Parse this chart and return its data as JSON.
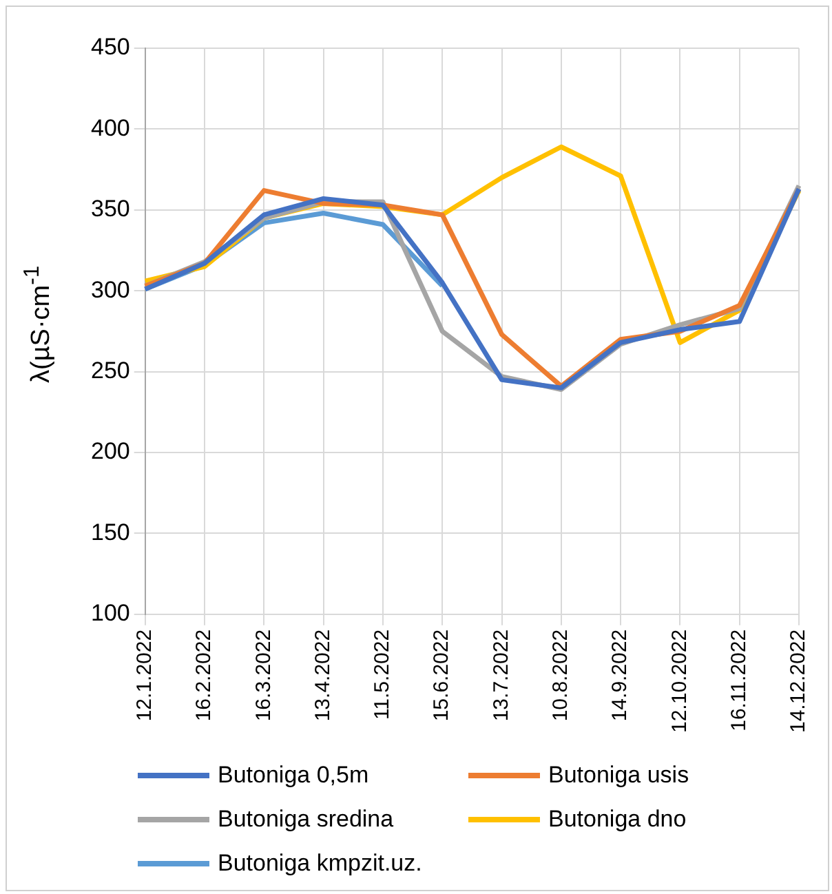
{
  "chart_data": {
    "type": "line",
    "ylabel": "λ(µS·cm$^{-1}$",
    "categories": [
      "12.1.2022",
      "16.2.2022",
      "16.3.2022",
      "13.4.2022",
      "11.5.2022",
      "15.6.2022",
      "13.7.2022",
      "10.8.2022",
      "14.9.2022",
      "12.10.2022",
      "16.11.2022",
      "14.12.2022"
    ],
    "series": [
      {
        "name": "Butoniga 0,5m",
        "color": "#4472c4",
        "values": [
          301,
          317,
          347,
          357,
          353,
          305,
          245,
          240,
          268,
          276,
          281,
          363
        ]
      },
      {
        "name": "Butoniga usis",
        "color": "#ed7d31",
        "values": [
          303,
          317,
          362,
          354,
          353,
          347,
          273,
          241,
          270,
          275,
          291,
          363
        ]
      },
      {
        "name": "Butoniga sredina",
        "color": "#a5a5a5",
        "values": [
          303,
          318,
          345,
          355,
          355,
          275,
          247,
          239,
          267,
          279,
          289,
          365
        ]
      },
      {
        "name": "Butoniga dno",
        "color": "#ffc000",
        "values": [
          306,
          315,
          345,
          354,
          352,
          347,
          370,
          389,
          371,
          268,
          288,
          362
        ]
      },
      {
        "name": "Butoniga kmpzit.uz.",
        "color": "#5b9bd5",
        "values": [
          301,
          316,
          342,
          348,
          341,
          303,
          null,
          null,
          null,
          null,
          null,
          null
        ]
      }
    ],
    "ylim": [
      100,
      450
    ],
    "yticks": [
      100,
      150,
      200,
      250,
      300,
      350,
      400,
      450
    ],
    "grid": true,
    "legend": "bottom",
    "marker": "none",
    "line_style": "solid"
  }
}
